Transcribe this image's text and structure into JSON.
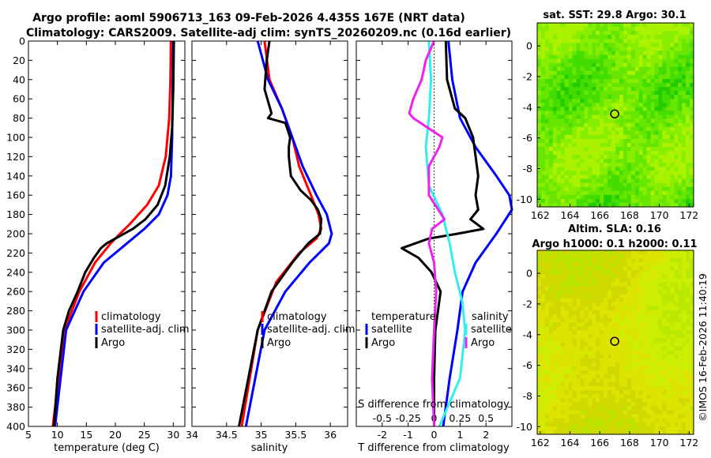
{
  "header": {
    "title_line1": "Argo profile: aoml 5906713_163 09-Feb-2026 4.435S 167E (NRT data)",
    "title_line2": "Climatology: CARS2009. Satellite-adj clim: synTS_20260209.nc (0.16d earlier)"
  },
  "credit": "©IMOS 16-Feb-2026 11:40:19",
  "colors": {
    "climatology": "#ff0000",
    "satellite": "#0000ff",
    "argo": "#000000",
    "t_diff": "#33eeee",
    "s_diff": "#ee22ee"
  },
  "chart_data": [
    {
      "type": "line",
      "name": "temperature",
      "xlabel": "temperature (deg C)",
      "xlim": [
        5,
        32
      ],
      "xticks": [
        5,
        10,
        15,
        20,
        25,
        30
      ],
      "xtick_labels": [
        "5",
        "10",
        "15",
        "20",
        "25",
        "30"
      ],
      "ylim": [
        0,
        400
      ],
      "yticks": [
        0,
        20,
        40,
        60,
        80,
        100,
        120,
        140,
        160,
        180,
        200,
        220,
        240,
        260,
        280,
        300,
        320,
        340,
        360,
        380,
        400
      ],
      "ytick_labels": [
        "0",
        "20",
        "40",
        "60",
        "80",
        "100",
        "120",
        "140",
        "160",
        "180",
        "200",
        "220",
        "240",
        "260",
        "280",
        "300",
        "320",
        "340",
        "360",
        "380",
        "400"
      ],
      "legend": [
        "climatology",
        "satellite-adj. clim",
        "Argo"
      ],
      "series": [
        {
          "name": "climatology",
          "color": "#ff0000",
          "depth": [
            0,
            40,
            80,
            120,
            150,
            170,
            190,
            200,
            210,
            230,
            260,
            300,
            400
          ],
          "values": [
            29.6,
            29.5,
            29.3,
            28.7,
            27.5,
            25.5,
            22.5,
            20.8,
            19.2,
            16.5,
            13.8,
            11.2,
            9.2
          ]
        },
        {
          "name": "satellite-adj. clim",
          "color": "#0000ff",
          "depth": [
            0,
            50,
            100,
            140,
            160,
            180,
            195,
            210,
            230,
            260,
            300,
            400
          ],
          "values": [
            30.0,
            29.9,
            29.8,
            29.6,
            29.0,
            27.5,
            25.0,
            22.0,
            18.0,
            14.5,
            11.5,
            9.6
          ]
        },
        {
          "name": "Argo",
          "color": "#000000",
          "depth": [
            0,
            50,
            90,
            120,
            150,
            170,
            185,
            195,
            205,
            210,
            215,
            225,
            240,
            260,
            280,
            300,
            350,
            400
          ],
          "values": [
            30.1,
            30.0,
            29.8,
            29.4,
            28.6,
            27.3,
            25.2,
            23.0,
            20.0,
            18.5,
            17.5,
            16.3,
            14.8,
            13.5,
            12.0,
            11.0,
            10.0,
            9.4
          ]
        }
      ]
    },
    {
      "type": "line",
      "name": "salinity",
      "xlabel": "salinity",
      "xlim": [
        34,
        36.25
      ],
      "xticks": [
        34,
        34.5,
        35,
        35.5,
        36
      ],
      "xtick_labels": [
        "34",
        "34.5",
        "35",
        "35.5",
        "36"
      ],
      "ylim": [
        0,
        400
      ],
      "legend": [
        "climatology",
        "satellite-adj. clim",
        "Argo"
      ],
      "series": [
        {
          "name": "climatology",
          "color": "#ff0000",
          "depth": [
            0,
            40,
            70,
            100,
            130,
            160,
            180,
            195,
            205,
            220,
            250,
            300,
            400
          ],
          "values": [
            35.05,
            35.12,
            35.3,
            35.45,
            35.55,
            35.72,
            35.83,
            35.87,
            35.8,
            35.55,
            35.22,
            34.95,
            34.72
          ]
        },
        {
          "name": "satellite-adj. clim",
          "color": "#0000ff",
          "depth": [
            0,
            40,
            70,
            100,
            130,
            160,
            180,
            200,
            210,
            230,
            260,
            300,
            400
          ],
          "values": [
            34.95,
            35.1,
            35.3,
            35.45,
            35.6,
            35.8,
            35.95,
            36.02,
            35.98,
            35.7,
            35.35,
            35.05,
            34.78
          ]
        },
        {
          "name": "Argo",
          "color": "#000000",
          "depth": [
            0,
            20,
            50,
            75,
            80,
            85,
            100,
            110,
            120,
            140,
            155,
            165,
            175,
            185,
            200,
            210,
            230,
            260,
            300,
            400
          ],
          "values": [
            35.12,
            35.08,
            35.05,
            35.15,
            35.1,
            35.35,
            35.42,
            35.4,
            35.4,
            35.43,
            35.57,
            35.72,
            35.82,
            35.87,
            35.85,
            35.68,
            35.45,
            35.15,
            34.95,
            34.68
          ]
        }
      ]
    },
    {
      "type": "line",
      "name": "difference",
      "xlabel": "T difference from climatology",
      "xlim": [
        -3,
        3
      ],
      "xticks": [
        -2,
        -1,
        0,
        1,
        2
      ],
      "xtick_labels": [
        "-2",
        "-1",
        "0",
        "1",
        "2"
      ],
      "top_xlabel": "S difference from climatology",
      "top_xticks": [
        -0.5,
        -0.25,
        0,
        0.25,
        0.5
      ],
      "top_xtick_labels": [
        "-0.5",
        "-0.25",
        "0",
        "0.25",
        "0.5"
      ],
      "ylim": [
        0,
        400
      ],
      "zero_line": 0,
      "legend_temperature_title": "temperature",
      "legend_salinity_title": "salinity",
      "legend_temperature": [
        "satellite",
        "Argo"
      ],
      "legend_salinity": [
        "satellite",
        "Argo"
      ],
      "series": [
        {
          "name": "T satellite",
          "color": "#0000ff",
          "depth": [
            0,
            40,
            80,
            110,
            140,
            160,
            175,
            200,
            230,
            260,
            300,
            350,
            400
          ],
          "values": [
            0.55,
            0.7,
            1.0,
            1.6,
            2.4,
            2.9,
            3.0,
            2.4,
            1.6,
            1.1,
            0.9,
            0.6,
            0.35
          ]
        },
        {
          "name": "T Argo",
          "color": "#000000",
          "depth": [
            0,
            40,
            70,
            80,
            100,
            140,
            160,
            175,
            185,
            195,
            200,
            205,
            215,
            225,
            240,
            260,
            300,
            350,
            400
          ],
          "values": [
            0.45,
            0.5,
            0.8,
            1.2,
            1.5,
            1.7,
            1.6,
            1.7,
            1.4,
            1.9,
            0.9,
            -0.2,
            -1.25,
            -0.6,
            -0.1,
            0.25,
            0.05,
            0.0,
            0.0
          ]
        },
        {
          "name": "S satellite",
          "color": "#33eeee",
          "depth": [
            0,
            40,
            80,
            110,
            150,
            180,
            210,
            240,
            270,
            300,
            350,
            400
          ],
          "values": [
            -0.05,
            -0.03,
            -0.05,
            -0.08,
            -0.05,
            0.08,
            0.15,
            0.2,
            0.27,
            0.3,
            0.25,
            0.05
          ]
        },
        {
          "name": "S Argo",
          "color": "#ee22ee",
          "depth": [
            0,
            20,
            40,
            60,
            75,
            80,
            100,
            110,
            130,
            160,
            185,
            195,
            210,
            230,
            260,
            300,
            350,
            400
          ],
          "values": [
            0.0,
            -0.08,
            -0.12,
            -0.2,
            -0.24,
            -0.2,
            0.08,
            0.05,
            -0.05,
            -0.05,
            0.1,
            -0.02,
            -0.05,
            0.0,
            0.02,
            0.0,
            -0.02,
            0.0
          ]
        }
      ]
    },
    {
      "type": "heatmap",
      "name": "sst-map",
      "title": "sat. SST: 29.8 Argo: 30.1",
      "xlim": [
        161.8,
        172.3
      ],
      "ylim": [
        -10.5,
        1.5
      ],
      "xticks": [
        162,
        164,
        166,
        168,
        170,
        172
      ],
      "xtick_labels": [
        "162",
        "164",
        "166",
        "168",
        "170",
        "172"
      ],
      "yticks": [
        0,
        -2,
        -4,
        -6,
        -8,
        -10
      ],
      "ytick_labels": [
        "0",
        "-2",
        "-4",
        "-6",
        "-8",
        "-10"
      ],
      "float_position": [
        167,
        -4.435
      ]
    },
    {
      "type": "heatmap",
      "name": "sla-map",
      "title_line1": "Altim. SLA: 0.16",
      "title_line2": "Argo h1000: 0.1 h2000: 0.11",
      "xlim": [
        161.8,
        172.3
      ],
      "ylim": [
        -10.5,
        1.5
      ],
      "xticks": [
        162,
        164,
        166,
        168,
        170,
        172
      ],
      "xtick_labels": [
        "162",
        "164",
        "166",
        "168",
        "170",
        "172"
      ],
      "yticks": [
        0,
        -2,
        -4,
        -6,
        -8,
        -10
      ],
      "ytick_labels": [
        "0",
        "-2",
        "-4",
        "-6",
        "-8",
        "-10"
      ],
      "float_position": [
        167,
        -4.435
      ]
    }
  ]
}
